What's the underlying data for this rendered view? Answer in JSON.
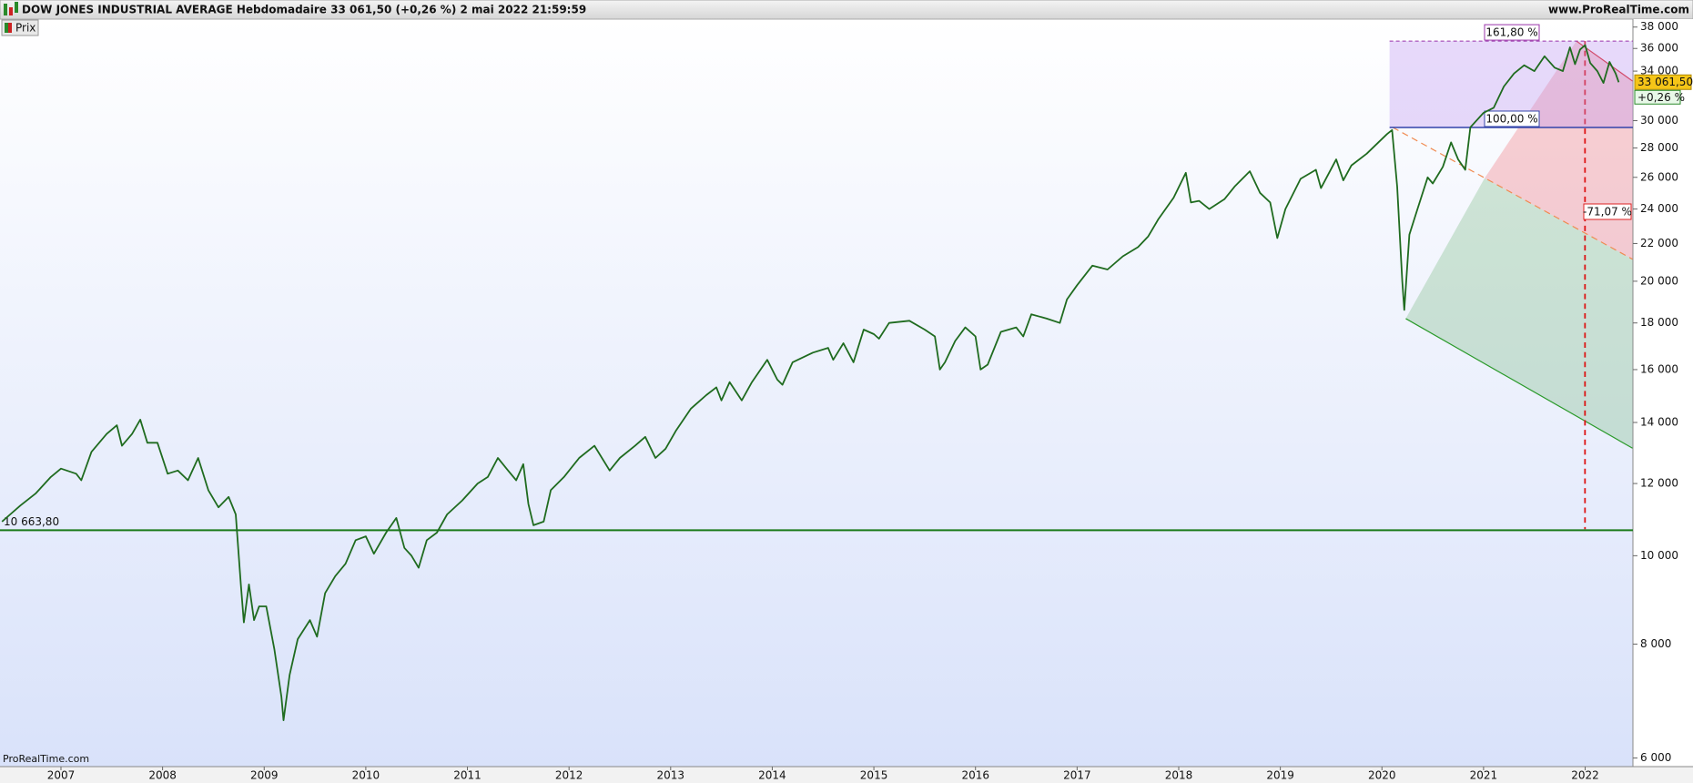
{
  "chart_data": {
    "type": "line",
    "title": "DOW JONES INDUSTRIAL AVERAGE Hebdomadaire 33 061,50 (+0,26 %) 2 mai 2022 21:59:59",
    "site": "www.ProRealTime.com",
    "watermark": "ProRealTime.com",
    "log_scale": true,
    "x": [
      2006.42,
      2006.5,
      2006.6,
      2006.75,
      2006.9,
      2007.0,
      2007.15,
      2007.2,
      2007.3,
      2007.45,
      2007.55,
      2007.6,
      2007.7,
      2007.78,
      2007.85,
      2007.95,
      2008.05,
      2008.15,
      2008.25,
      2008.35,
      2008.45,
      2008.55,
      2008.65,
      2008.72,
      2008.77,
      2008.8,
      2008.85,
      2008.9,
      2008.95,
      2009.02,
      2009.1,
      2009.17,
      2009.19,
      2009.25,
      2009.33,
      2009.45,
      2009.52,
      2009.6,
      2009.7,
      2009.8,
      2009.9,
      2010.0,
      2010.08,
      2010.2,
      2010.3,
      2010.38,
      2010.45,
      2010.52,
      2010.6,
      2010.7,
      2010.8,
      2010.95,
      2011.1,
      2011.2,
      2011.3,
      2011.4,
      2011.48,
      2011.55,
      2011.6,
      2011.65,
      2011.75,
      2011.82,
      2011.95,
      2012.1,
      2012.25,
      2012.4,
      2012.5,
      2012.65,
      2012.75,
      2012.85,
      2012.95,
      2013.05,
      2013.2,
      2013.35,
      2013.45,
      2013.5,
      2013.58,
      2013.7,
      2013.8,
      2013.95,
      2014.05,
      2014.1,
      2014.2,
      2014.4,
      2014.55,
      2014.6,
      2014.7,
      2014.8,
      2014.9,
      2015.0,
      2015.05,
      2015.15,
      2015.35,
      2015.5,
      2015.6,
      2015.65,
      2015.7,
      2015.8,
      2015.9,
      2016.0,
      2016.05,
      2016.12,
      2016.25,
      2016.4,
      2016.47,
      2016.55,
      2016.7,
      2016.83,
      2016.9,
      2017.0,
      2017.15,
      2017.3,
      2017.45,
      2017.6,
      2017.7,
      2017.8,
      2017.95,
      2018.07,
      2018.12,
      2018.2,
      2018.3,
      2018.45,
      2018.55,
      2018.7,
      2018.8,
      2018.9,
      2018.97,
      2019.05,
      2019.2,
      2019.35,
      2019.4,
      2019.55,
      2019.62,
      2019.7,
      2019.85,
      2019.98,
      2020.05,
      2020.1,
      2020.15,
      2020.2,
      2020.22,
      2020.27,
      2020.35,
      2020.45,
      2020.5,
      2020.6,
      2020.68,
      2020.75,
      2020.82,
      2020.87,
      2021.0,
      2021.1,
      2021.2,
      2021.3,
      2021.4,
      2021.5,
      2021.6,
      2021.7,
      2021.78,
      2021.85,
      2021.9,
      2021.95,
      2022.0,
      2022.05,
      2022.12,
      2022.18,
      2022.24,
      2022.3,
      2022.33
    ],
    "series": [
      {
        "name": "Prix",
        "color": "#1f6b1f",
        "values": [
          10900,
          11100,
          11350,
          11700,
          12200,
          12460,
          12300,
          12100,
          13000,
          13600,
          13900,
          13200,
          13600,
          14100,
          13300,
          13300,
          12300,
          12400,
          12100,
          12800,
          11800,
          11300,
          11600,
          11100,
          9300,
          8450,
          9300,
          8500,
          8800,
          8800,
          7900,
          7000,
          6600,
          7400,
          8100,
          8500,
          8150,
          9100,
          9500,
          9800,
          10400,
          10500,
          10050,
          10600,
          11000,
          10200,
          10000,
          9700,
          10400,
          10600,
          11100,
          11500,
          12000,
          12200,
          12800,
          12400,
          12100,
          12600,
          11400,
          10800,
          10900,
          11800,
          12200,
          12800,
          13200,
          12400,
          12800,
          13200,
          13500,
          12800,
          13100,
          13700,
          14500,
          15000,
          15300,
          14800,
          15500,
          14800,
          15500,
          16400,
          15600,
          15400,
          16300,
          16700,
          16900,
          16400,
          17100,
          16300,
          17700,
          17500,
          17300,
          18000,
          18100,
          17700,
          17400,
          16000,
          16300,
          17200,
          17800,
          17400,
          16000,
          16200,
          17600,
          17800,
          17400,
          18400,
          18200,
          18000,
          19100,
          19800,
          20800,
          20600,
          21300,
          21800,
          22400,
          23400,
          24700,
          26300,
          24400,
          24500,
          24000,
          24600,
          25400,
          26400,
          25000,
          24400,
          22300,
          24000,
          25900,
          26500,
          25300,
          27200,
          25800,
          26800,
          27600,
          28500,
          29000,
          29300,
          25400,
          20000,
          18600,
          22500,
          24000,
          26000,
          25600,
          26700,
          28400,
          27200,
          26500,
          29500,
          30600,
          31000,
          32700,
          33800,
          34500,
          34000,
          35300,
          34300,
          34000,
          36100,
          34600,
          35900,
          36300,
          34700,
          34000,
          33000,
          34800,
          33800,
          33061.5
        ]
      }
    ],
    "xlim": [
      2006.4,
      2022.47
    ],
    "xticks": [
      2007,
      2008,
      2009,
      2010,
      2011,
      2012,
      2013,
      2014,
      2015,
      2016,
      2017,
      2018,
      2019,
      2020,
      2021,
      2022
    ],
    "ylim": [
      5871,
      38680
    ],
    "yticks": [
      {
        "value": 6000,
        "label": "6 000"
      },
      {
        "value": 8000,
        "label": "8 000"
      },
      {
        "value": 10000,
        "label": "10 000"
      },
      {
        "value": 12000,
        "label": "12 000"
      },
      {
        "value": 14000,
        "label": "14 000"
      },
      {
        "value": 16000,
        "label": "16 000"
      },
      {
        "value": 18000,
        "label": "18 000"
      },
      {
        "value": 20000,
        "label": "20 000"
      },
      {
        "value": 22000,
        "label": "22 000"
      },
      {
        "value": 24000,
        "label": "24 000"
      },
      {
        "value": 26000,
        "label": "26 000"
      },
      {
        "value": 28000,
        "label": "28 000"
      },
      {
        "value": 30000,
        "label": "30 000"
      },
      {
        "value": 34000,
        "label": "34 000"
      },
      {
        "value": 36000,
        "label": "36 000"
      },
      {
        "value": 38000,
        "label": "38 000"
      }
    ],
    "support_line": {
      "value": 10663.8,
      "label": "10 663,80",
      "color": "#1a7a1a"
    },
    "fib_levels": [
      {
        "value": 36680,
        "label": "161,80 %"
      },
      {
        "value": 29490,
        "label": "100,00 %"
      }
    ],
    "projection_label": "-71,07 %",
    "last_price": {
      "value": 33061.5,
      "label": "33 061,50"
    },
    "change_label": "+0,26 %"
  }
}
